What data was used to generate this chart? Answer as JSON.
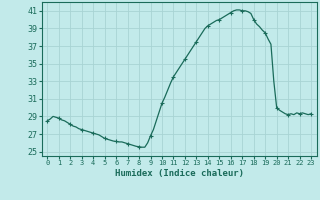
{
  "title": "",
  "xlabel": "Humidex (Indice chaleur)",
  "background_color": "#c2eaea",
  "grid_color": "#a8d4d4",
  "line_color": "#1a6b5a",
  "xlim": [
    -0.5,
    23.5
  ],
  "ylim": [
    24.5,
    42.0
  ],
  "yticks": [
    25,
    27,
    29,
    31,
    33,
    35,
    37,
    39,
    41
  ],
  "xticks": [
    0,
    1,
    2,
    3,
    4,
    5,
    6,
    7,
    8,
    9,
    10,
    11,
    12,
    13,
    14,
    15,
    16,
    17,
    18,
    19,
    20,
    21,
    22,
    23
  ],
  "hours_raw": [
    0,
    0.25,
    0.5,
    0.75,
    1,
    1.25,
    1.5,
    1.75,
    2,
    2.25,
    2.5,
    2.75,
    3,
    3.25,
    3.5,
    3.75,
    4,
    4.25,
    4.5,
    4.75,
    5,
    5.25,
    5.5,
    5.75,
    6,
    6.25,
    6.5,
    6.75,
    7,
    7.25,
    7.5,
    7.75,
    8,
    8.25,
    8.5,
    8.75,
    9,
    9.25,
    9.5,
    9.75,
    10,
    10.25,
    10.5,
    10.75,
    11,
    11.25,
    11.5,
    11.75,
    12,
    12.25,
    12.5,
    12.75,
    13,
    13.25,
    13.5,
    13.75,
    14,
    14.25,
    14.5,
    14.75,
    15,
    15.25,
    15.5,
    15.75,
    16,
    16.25,
    16.5,
    16.75,
    17,
    17.25,
    17.5,
    17.75,
    18,
    18.25,
    18.5,
    18.75,
    19,
    19.25,
    19.5,
    19.75,
    20,
    20.25,
    20.5,
    20.75,
    21,
    21.25,
    21.5,
    21.75,
    22,
    22.25,
    22.5,
    22.75,
    23
  ],
  "values_raw": [
    28.5,
    28.7,
    29.0,
    28.9,
    28.8,
    28.6,
    28.5,
    28.3,
    28.1,
    27.9,
    27.8,
    27.6,
    27.5,
    27.4,
    27.3,
    27.2,
    27.1,
    27.0,
    26.9,
    26.7,
    26.5,
    26.4,
    26.3,
    26.2,
    26.15,
    26.1,
    26.1,
    26.0,
    25.9,
    25.8,
    25.7,
    25.6,
    25.55,
    25.5,
    25.5,
    26.0,
    26.8,
    27.5,
    28.5,
    29.5,
    30.5,
    31.2,
    32.0,
    32.8,
    33.5,
    34.0,
    34.5,
    35.0,
    35.5,
    36.0,
    36.5,
    37.0,
    37.5,
    38.0,
    38.5,
    39.0,
    39.3,
    39.5,
    39.7,
    39.9,
    40.0,
    40.2,
    40.4,
    40.6,
    40.8,
    41.0,
    41.1,
    41.1,
    41.0,
    41.0,
    40.9,
    40.7,
    40.0,
    39.5,
    39.2,
    38.8,
    38.5,
    37.8,
    37.2,
    33.0,
    30.0,
    29.7,
    29.5,
    29.3,
    29.2,
    29.3,
    29.2,
    29.4,
    29.3,
    29.4,
    29.3,
    29.2,
    29.3
  ],
  "marker_hours": [
    0,
    1,
    2,
    3,
    4,
    5,
    6,
    7,
    8,
    9,
    10,
    11,
    12,
    13,
    14,
    15,
    16,
    17,
    18,
    19,
    20,
    21,
    22,
    23
  ],
  "marker_values": [
    28.5,
    28.8,
    28.1,
    27.5,
    27.1,
    26.5,
    26.15,
    25.9,
    25.55,
    26.8,
    30.5,
    33.5,
    35.5,
    37.5,
    39.3,
    40.0,
    40.8,
    41.0,
    40.0,
    38.5,
    30.0,
    29.2,
    29.3,
    29.3
  ]
}
